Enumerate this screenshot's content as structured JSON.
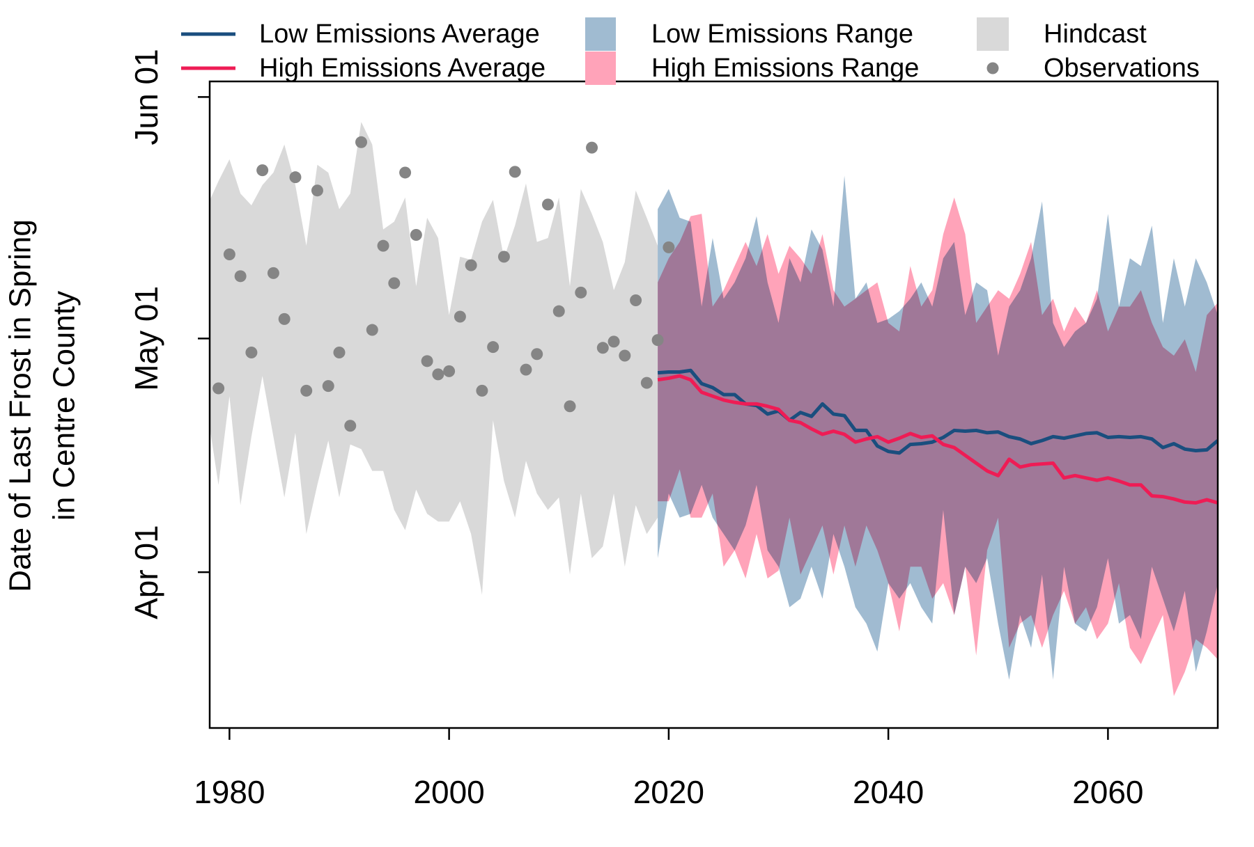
{
  "chart_data": {
    "type": "line",
    "ylabel": [
      "Date of Last Frost in Spring",
      "in Centre County"
    ],
    "xlim": [
      1978.2,
      2070
    ],
    "ylim": [
      71,
      154
    ],
    "xticks": [
      1980,
      2000,
      2020,
      2040,
      2060
    ],
    "yticks": [
      {
        "value": 91,
        "label": "Apr 01"
      },
      {
        "value": 121,
        "label": "May 01"
      },
      {
        "value": 152,
        "label": "Jun 01"
      }
    ],
    "series": [
      {
        "name": "Low Emissions Average",
        "type": "line",
        "color": "#1a4e7e",
        "x": [
          2019,
          2020,
          2021,
          2022,
          2023,
          2024,
          2025,
          2026,
          2027,
          2028,
          2029,
          2030,
          2031,
          2032,
          2033,
          2034,
          2035,
          2036,
          2037,
          2038,
          2039,
          2040,
          2041,
          2042,
          2043,
          2044,
          2045,
          2046,
          2047,
          2048,
          2049,
          2050,
          2051,
          2052,
          2053,
          2054,
          2055,
          2056,
          2057,
          2058,
          2059,
          2060,
          2061,
          2062,
          2063,
          2064,
          2065,
          2066,
          2067,
          2068,
          2069,
          2070
        ],
        "values": [
          116.6,
          116.7,
          116.7,
          116.9,
          115.2,
          114.7,
          113.8,
          113.8,
          112.6,
          112.4,
          111.3,
          111.7,
          110.5,
          111.5,
          111.0,
          112.6,
          111.3,
          111.1,
          109.2,
          109.2,
          107.2,
          106.5,
          106.3,
          107.4,
          107.5,
          107.7,
          108.3,
          109.2,
          109.1,
          109.2,
          108.9,
          109.0,
          108.4,
          108.1,
          107.5,
          107.9,
          108.4,
          108.2,
          108.5,
          108.8,
          108.9,
          108.3,
          108.4,
          108.3,
          108.4,
          108.1,
          107.0,
          107.5,
          106.8,
          106.6,
          106.7,
          107.9
        ]
      },
      {
        "name": "High Emissions Average",
        "type": "line",
        "color": "#ee1c55",
        "x": [
          2019,
          2020,
          2021,
          2022,
          2023,
          2024,
          2025,
          2026,
          2027,
          2028,
          2029,
          2030,
          2031,
          2032,
          2033,
          2034,
          2035,
          2036,
          2037,
          2038,
          2039,
          2040,
          2041,
          2042,
          2043,
          2044,
          2045,
          2046,
          2047,
          2048,
          2049,
          2050,
          2051,
          2052,
          2053,
          2054,
          2055,
          2056,
          2057,
          2058,
          2059,
          2060,
          2061,
          2062,
          2063,
          2064,
          2065,
          2066,
          2067,
          2068,
          2069,
          2070
        ],
        "values": [
          115.7,
          115.9,
          116.2,
          115.7,
          114.1,
          113.6,
          113.1,
          112.8,
          112.6,
          112.6,
          112.3,
          111.9,
          110.5,
          110.2,
          109.4,
          108.7,
          109.1,
          108.7,
          107.7,
          108.1,
          108.4,
          107.7,
          108.2,
          108.8,
          108.3,
          108.5,
          107.4,
          107.0,
          106.0,
          105.0,
          104.0,
          103.4,
          105.5,
          104.5,
          104.8,
          104.9,
          105.0,
          103.1,
          103.4,
          103.1,
          102.8,
          103.1,
          102.7,
          102.2,
          102.2,
          100.8,
          100.7,
          100.4,
          100.0,
          99.9,
          100.3,
          99.9
        ]
      },
      {
        "name": "Low Emissions Range",
        "type": "band",
        "color": "#a0bbd1",
        "x": [
          2019,
          2020,
          2021,
          2022,
          2023,
          2024,
          2025,
          2026,
          2027,
          2028,
          2029,
          2030,
          2031,
          2032,
          2033,
          2034,
          2035,
          2036,
          2037,
          2038,
          2039,
          2040,
          2041,
          2042,
          2043,
          2044,
          2045,
          2046,
          2047,
          2048,
          2049,
          2050,
          2051,
          2052,
          2053,
          2054,
          2055,
          2056,
          2057,
          2058,
          2059,
          2060,
          2061,
          2062,
          2063,
          2064,
          2065,
          2066,
          2067,
          2068,
          2069,
          2070
        ],
        "upper": [
          137.6,
          140.2,
          136.5,
          136.0,
          125.1,
          133.9,
          126.1,
          128.2,
          131.3,
          136.7,
          128.2,
          123.0,
          131.3,
          128.2,
          135.0,
          132.4,
          125.1,
          141.9,
          126.1,
          128.2,
          123.0,
          123.5,
          124.5,
          126.1,
          128.2,
          125.1,
          131.3,
          133.4,
          124.0,
          128.2,
          127.2,
          118.8,
          125.1,
          127.2,
          131.3,
          138.6,
          123.0,
          119.9,
          121.9,
          123.0,
          126.1,
          137.0,
          125.1,
          131.3,
          130.3,
          135.5,
          123.0,
          131.3,
          125.1,
          131.3,
          128.2,
          124.0
        ],
        "lower": [
          92.8,
          101.1,
          98.0,
          98.5,
          102.2,
          98.0,
          95.9,
          93.8,
          97.0,
          102.2,
          93.8,
          91.7,
          86.5,
          87.6,
          91.7,
          87.6,
          95.9,
          91.7,
          86.5,
          84.4,
          80.8,
          89.6,
          87.6,
          89.6,
          86.5,
          84.4,
          99.0,
          85.5,
          91.7,
          89.6,
          92.8,
          84.4,
          77.2,
          85.5,
          81.3,
          90.7,
          77.2,
          91.7,
          84.4,
          83.4,
          86.5,
          92.8,
          84.4,
          85.5,
          82.4,
          91.7,
          87.6,
          83.4,
          88.6,
          78.2,
          83.4,
          89.6
        ]
      },
      {
        "name": "High Emissions Range",
        "type": "band",
        "color": "#ffa3b9",
        "x": [
          2019,
          2020,
          2021,
          2022,
          2023,
          2024,
          2025,
          2026,
          2027,
          2028,
          2029,
          2030,
          2031,
          2032,
          2033,
          2034,
          2035,
          2036,
          2037,
          2038,
          2039,
          2040,
          2041,
          2042,
          2043,
          2044,
          2045,
          2046,
          2047,
          2048,
          2049,
          2050,
          2051,
          2052,
          2053,
          2054,
          2055,
          2056,
          2057,
          2058,
          2059,
          2060,
          2061,
          2062,
          2063,
          2064,
          2065,
          2066,
          2067,
          2068,
          2069,
          2070
        ],
        "upper": [
          128.2,
          131.3,
          133.4,
          136.7,
          137.0,
          125.1,
          127.2,
          130.3,
          133.4,
          130.3,
          134.4,
          129.3,
          132.9,
          131.3,
          129.3,
          134.4,
          127.2,
          125.1,
          126.1,
          127.2,
          128.2,
          123.0,
          121.9,
          130.3,
          125.1,
          127.2,
          134.4,
          139.1,
          134.4,
          123.0,
          125.1,
          127.2,
          126.1,
          129.3,
          133.4,
          124.0,
          126.1,
          121.9,
          125.1,
          123.0,
          127.2,
          121.9,
          125.1,
          125.1,
          127.2,
          123.0,
          119.9,
          118.8,
          120.9,
          116.7,
          124.0,
          125.6
        ],
        "lower": [
          100.1,
          100.1,
          104.2,
          98.0,
          98.0,
          101.1,
          91.7,
          93.8,
          90.2,
          95.9,
          90.2,
          91.2,
          98.0,
          90.7,
          93.8,
          97.0,
          90.7,
          97.0,
          91.7,
          97.0,
          93.8,
          89.6,
          83.4,
          91.7,
          91.7,
          87.6,
          89.6,
          85.5,
          91.7,
          80.3,
          93.8,
          98.0,
          81.3,
          84.4,
          85.5,
          81.3,
          85.5,
          88.6,
          84.4,
          86.5,
          82.4,
          84.4,
          89.6,
          81.3,
          79.2,
          82.4,
          85.5,
          75.1,
          78.2,
          82.4,
          81.3,
          79.8
        ]
      },
      {
        "name": "Hindcast",
        "type": "band",
        "color": "#d9d9d9",
        "x": [
          1978,
          1979,
          1980,
          1981,
          1982,
          1983,
          1984,
          1985,
          1986,
          1987,
          1988,
          1989,
          1990,
          1991,
          1992,
          1993,
          1994,
          1995,
          1996,
          1997,
          1998,
          1999,
          2000,
          2001,
          2002,
          2003,
          2004,
          2005,
          2006,
          2007,
          2008,
          2009,
          2010,
          2011,
          2012,
          2013,
          2014,
          2015,
          2016,
          2017,
          2018,
          2019
        ],
        "upper": [
          138.1,
          141.2,
          144.0,
          139.6,
          138.1,
          140.7,
          142.3,
          145.9,
          140.7,
          132.9,
          143.3,
          142.3,
          137.6,
          139.6,
          148.8,
          145.9,
          135.0,
          136.0,
          139.1,
          127.7,
          136.5,
          133.9,
          124.0,
          131.5,
          131.1,
          136.0,
          138.8,
          131.3,
          135.5,
          140.9,
          133.4,
          133.9,
          139.1,
          127.7,
          140.2,
          137.0,
          133.4,
          127.2,
          130.8,
          140.0,
          136.5,
          132.9
        ],
        "lower": [
          111.5,
          102.2,
          113.6,
          99.6,
          108.4,
          116.2,
          108.4,
          100.6,
          108.9,
          95.9,
          102.2,
          107.9,
          100.6,
          107.4,
          106.8,
          104.0,
          104.0,
          99.0,
          96.4,
          101.6,
          98.5,
          97.5,
          97.5,
          100.1,
          95.9,
          88.1,
          110.5,
          102.7,
          98.0,
          105.3,
          101.1,
          99.0,
          100.6,
          90.7,
          101.1,
          92.8,
          94.3,
          101.1,
          91.7,
          99.6,
          95.9,
          98.0
        ]
      },
      {
        "name": "Observations",
        "type": "points",
        "color": "#858585",
        "x": [
          1979,
          1980,
          1981,
          1982,
          1983,
          1984,
          1985,
          1986,
          1987,
          1988,
          1989,
          1990,
          1991,
          1992,
          1993,
          1994,
          1995,
          1996,
          1997,
          1998,
          1999,
          2000,
          2001,
          2002,
          2003,
          2004,
          2005,
          2006,
          2007,
          2008,
          2009,
          2010,
          2011,
          2012,
          2013,
          2014,
          2015,
          2016,
          2017,
          2018,
          2019,
          2020
        ],
        "values": [
          114.6,
          131.8,
          129,
          119.2,
          142.6,
          129.4,
          123.5,
          141.7,
          114.3,
          140,
          114.9,
          119.2,
          109.8,
          146.2,
          122.1,
          132.9,
          128.1,
          142.3,
          134.3,
          118.1,
          116.4,
          116.8,
          123.8,
          130.4,
          114.3,
          119.9,
          131.5,
          142.4,
          117,
          119,
          138.2,
          124.5,
          112.3,
          126.9,
          145.5,
          119.8,
          120.6,
          118.8,
          125.9,
          115.3,
          120.8,
          132.7
        ]
      }
    ]
  }
}
